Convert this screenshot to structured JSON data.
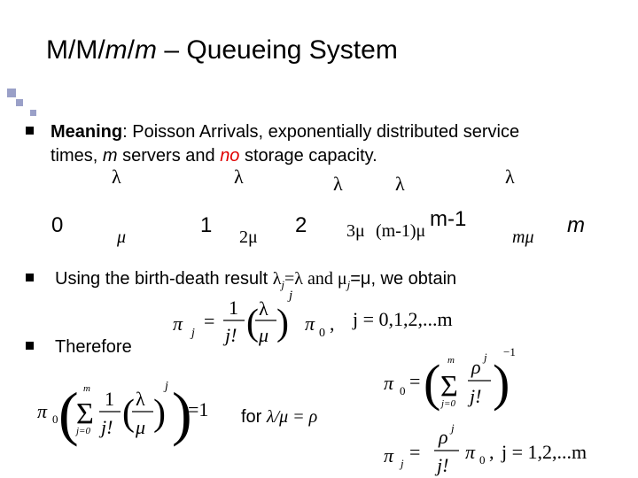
{
  "title": [
    "M/M/",
    "m",
    "/",
    "m",
    " – Queueing System"
  ],
  "bullets": [
    [
      "Meaning",
      ": Poisson Arrivals, exponentially distributed service",
      "times, ",
      "m",
      " servers and ",
      "no",
      " storage capacity."
    ],
    [
      "Using the birth-death result ",
      "λ",
      "j",
      "=λ and ",
      "μ",
      "j",
      "=μ, we obtain"
    ],
    [
      "Therefore"
    ]
  ],
  "diagram": {
    "nodes": [
      "0",
      "1",
      "2",
      "m-1",
      "m"
    ],
    "arrivals": [
      "λ",
      "λ",
      "λ",
      "λ",
      "λ"
    ],
    "departures": [
      "μ",
      "2μ",
      "3μ",
      "(m-1)μ",
      "mμ"
    ]
  },
  "formulas": {
    "f1": [
      "π",
      "j",
      "=",
      "1",
      "j!",
      "λ",
      "μ",
      "j",
      "π",
      "0",
      ",",
      "j = 0,1,2,...m"
    ],
    "f2": [
      "π",
      "0",
      "=",
      "Σ",
      "m",
      "j=0",
      "ρ",
      "j",
      "j!",
      "−1"
    ],
    "f3": [
      "π",
      "0",
      "Σ",
      "m",
      "j=0",
      "1",
      "j!",
      "λ",
      "μ",
      "j",
      "=1"
    ],
    "f4": [
      "π",
      "j",
      "=",
      "ρ",
      "j",
      "j!",
      "π",
      "0",
      ",",
      "j = 1,2,...m"
    ]
  },
  "note": [
    "for ",
    "λ/μ = ρ"
  ]
}
